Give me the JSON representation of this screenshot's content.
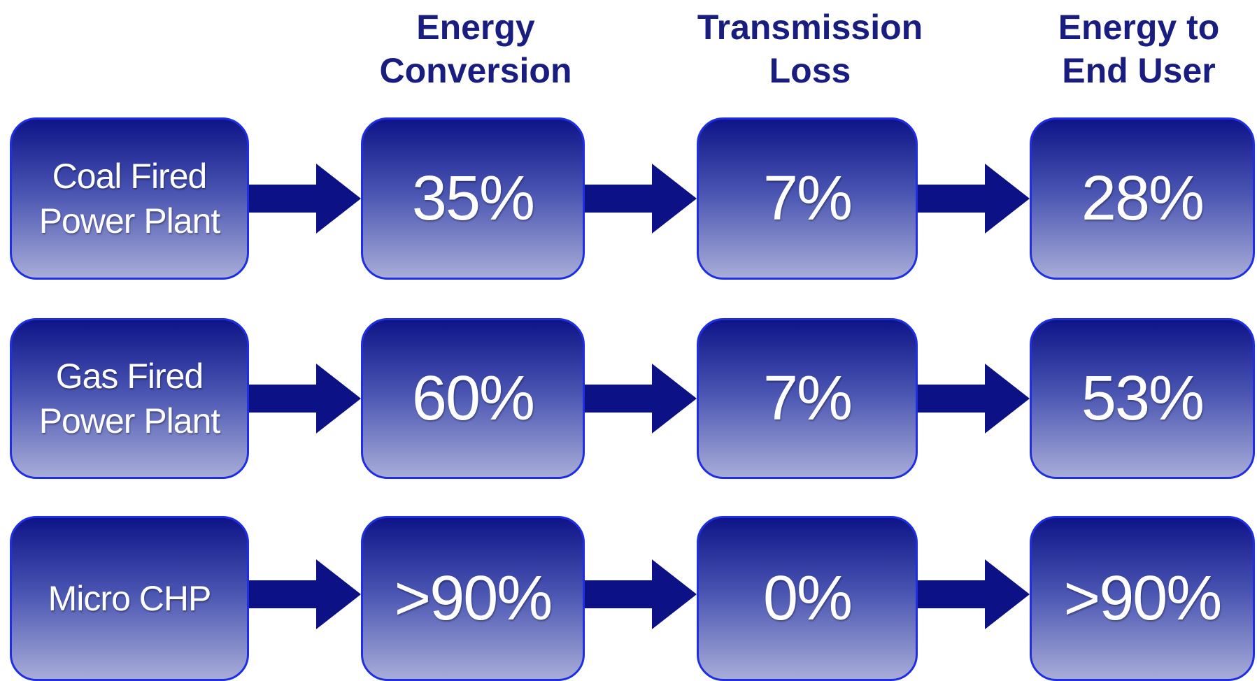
{
  "headers": [
    {
      "line1": "Energy",
      "line2": "Conversion"
    },
    {
      "line1": "Transmission",
      "line2": "Loss"
    },
    {
      "line1": "Energy to",
      "line2": "End User"
    }
  ],
  "rows": [
    {
      "source": {
        "line1": "Coal Fired",
        "line2": "Power Plant"
      },
      "conversion": "35%",
      "transmission_loss": "7%",
      "end_user": "28%"
    },
    {
      "source": {
        "line1": "Gas Fired",
        "line2": "Power Plant"
      },
      "conversion": "60%",
      "transmission_loss": "7%",
      "end_user": "53%"
    },
    {
      "source": {
        "line1": "Micro CHP",
        "line2": ""
      },
      "conversion": ">90%",
      "transmission_loss": "0%",
      "end_user": ">90%"
    }
  ],
  "colors": {
    "header_text": "#1a1d80",
    "box_top": "#0e1488",
    "box_bottom": "#a8acd8",
    "box_border": "#1f2ee0",
    "arrow": "#0c1185"
  }
}
